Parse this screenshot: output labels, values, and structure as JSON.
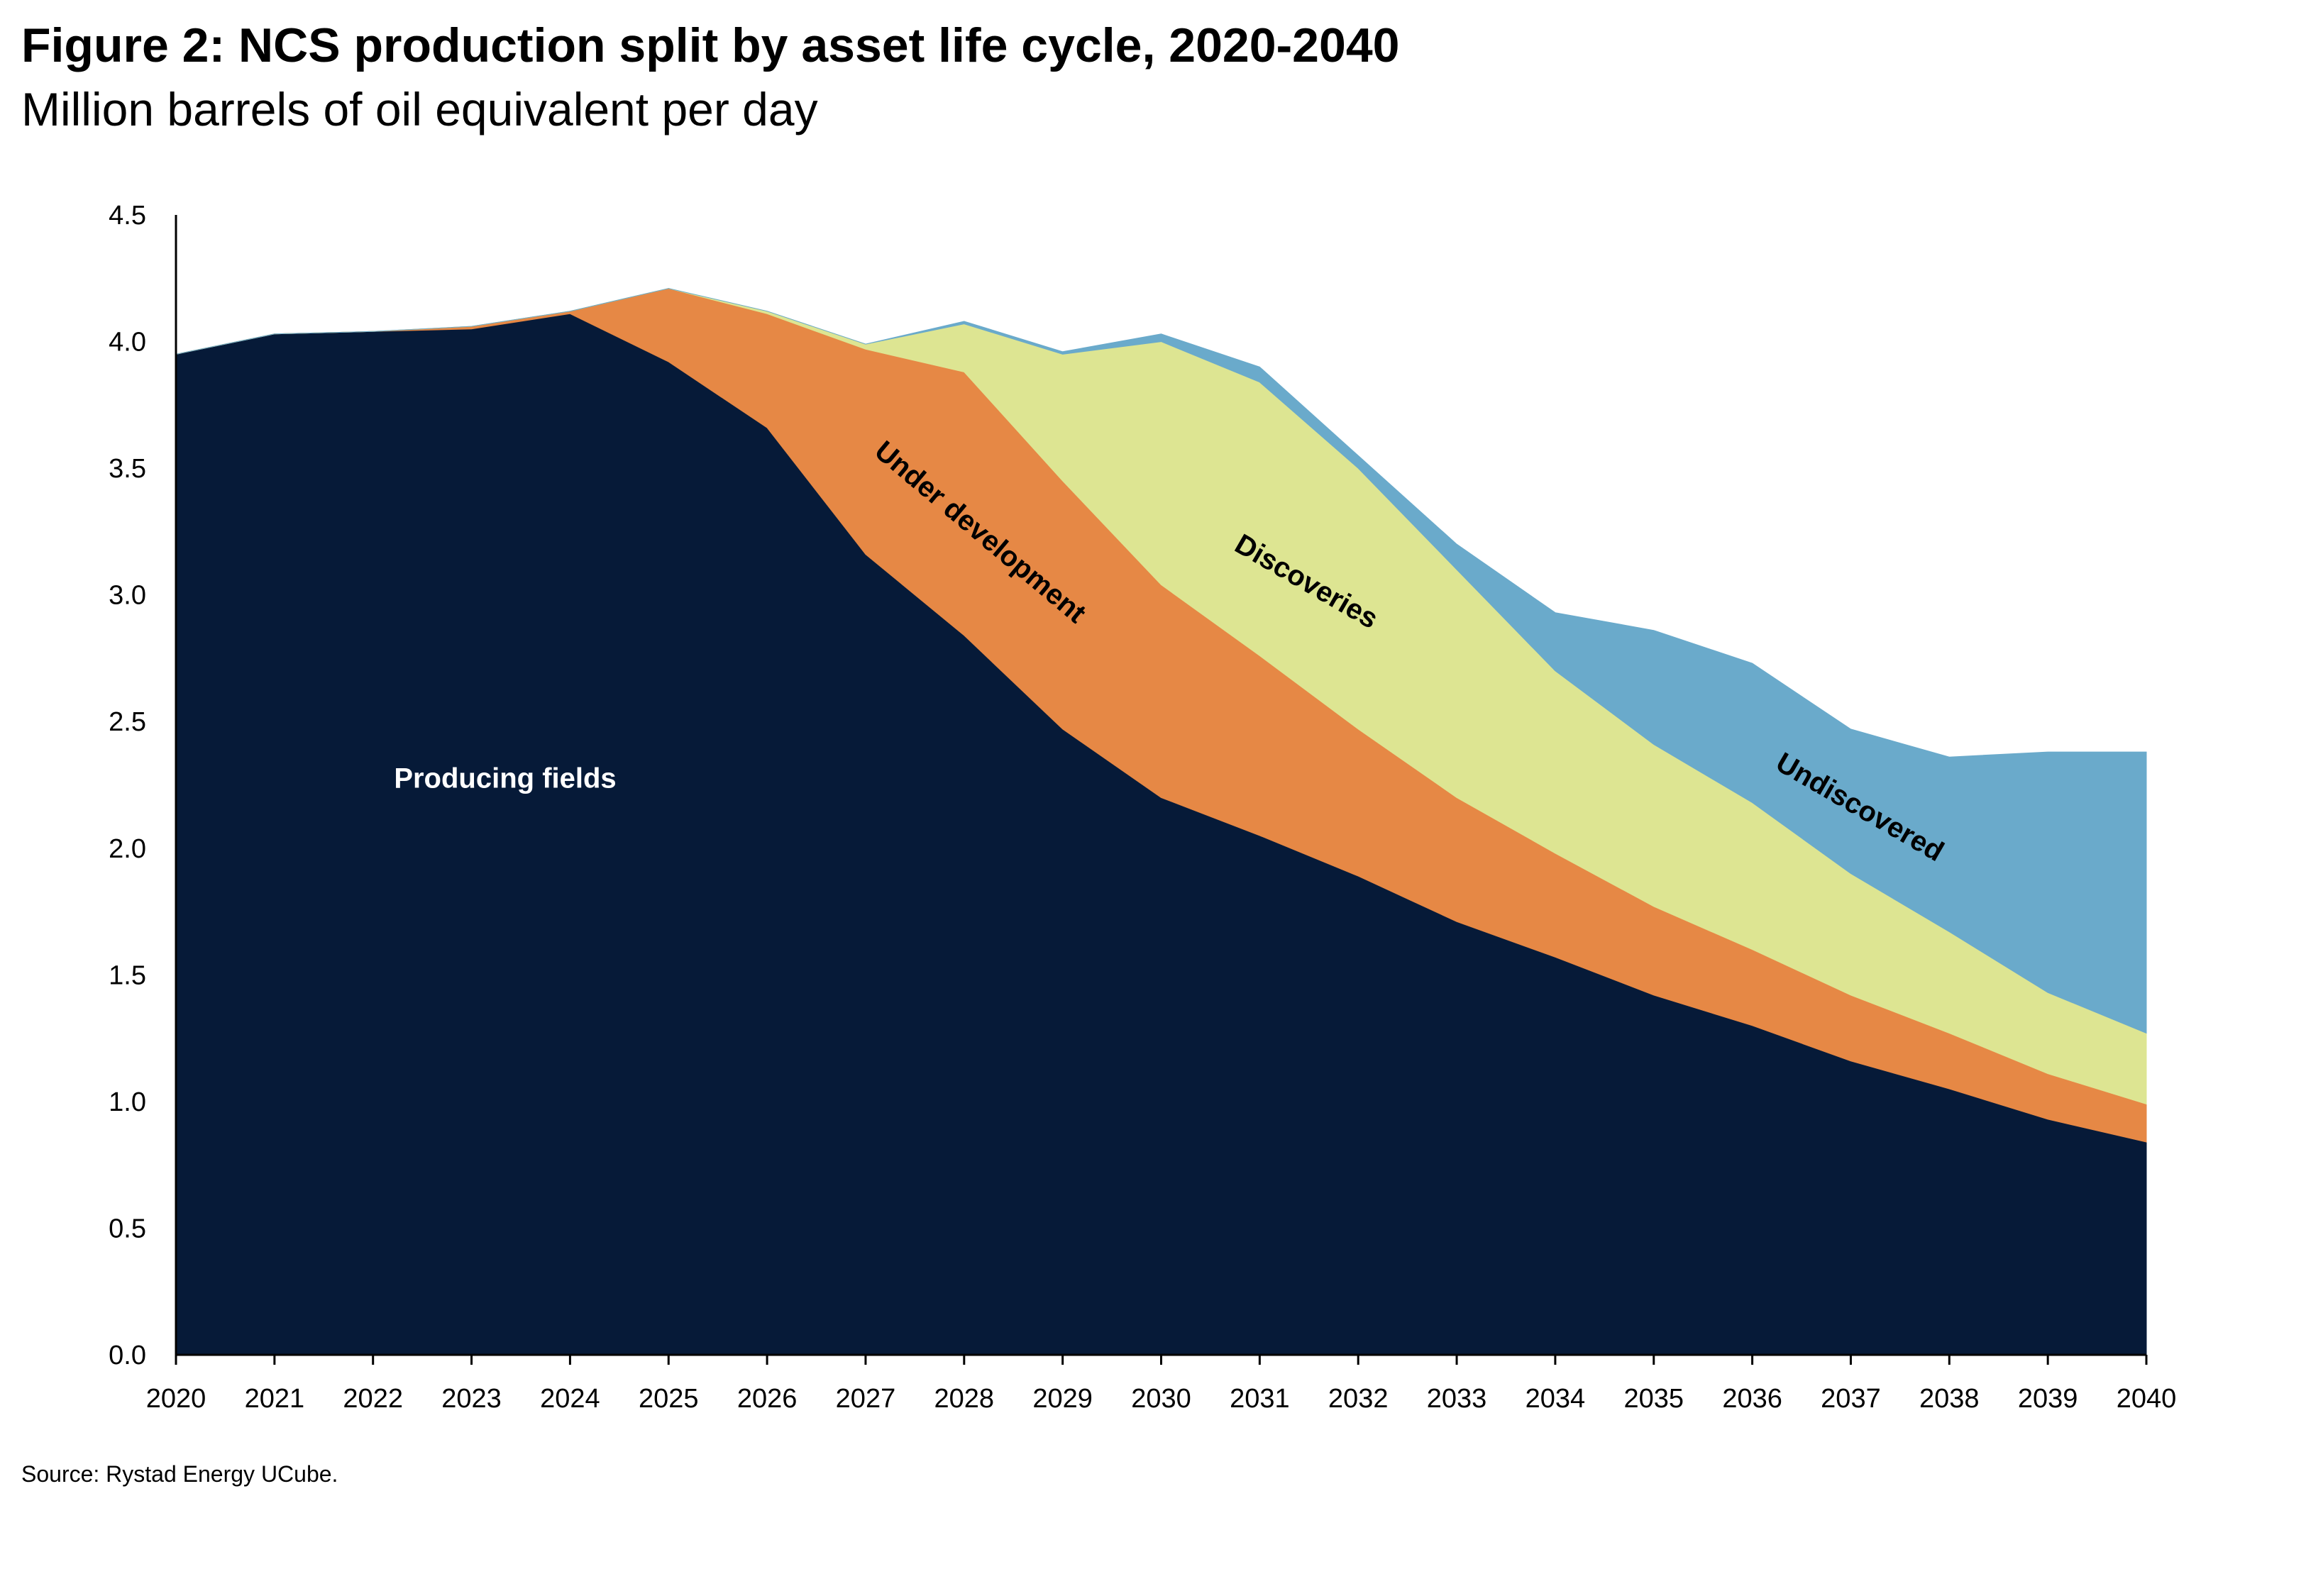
{
  "title": "Figure 2: NCS production split by asset life cycle, 2020-2040",
  "subtitle": "Million barrels of oil equivalent per day",
  "source": "Source: Rystad Energy UCube.",
  "chart_data": {
    "type": "area",
    "stacked": true,
    "title": "Figure 2: NCS production split by asset life cycle, 2020-2040",
    "subtitle": "Million barrels of oil equivalent per day",
    "xlabel": "",
    "ylabel": "",
    "categories": [
      "2020",
      "2021",
      "2022",
      "2023",
      "2024",
      "2025",
      "2026",
      "2027",
      "2028",
      "2029",
      "2030",
      "2031",
      "2032",
      "2033",
      "2034",
      "2035",
      "2036",
      "2037",
      "2038",
      "2039",
      "2040"
    ],
    "ylim": [
      0,
      4.5
    ],
    "yticks": [
      "0.0",
      "0.5",
      "1.0",
      "1.5",
      "2.0",
      "2.5",
      "3.0",
      "3.5",
      "4.0",
      "4.5"
    ],
    "grid": false,
    "legend": "none",
    "series": [
      {
        "name": "Producing fields",
        "color": "#061a38",
        "label_color": "#ffffff",
        "values": [
          3.95,
          4.03,
          4.04,
          4.05,
          4.11,
          3.92,
          3.66,
          3.16,
          2.84,
          2.47,
          2.2,
          2.05,
          1.89,
          1.71,
          1.57,
          1.42,
          1.3,
          1.16,
          1.05,
          0.93,
          0.84
        ]
      },
      {
        "name": "Under development",
        "color": "#e68845",
        "label_color": "#000000",
        "values": [
          0.0,
          0.0,
          0.0,
          0.01,
          0.01,
          0.29,
          0.45,
          0.81,
          1.04,
          0.98,
          0.84,
          0.71,
          0.58,
          0.49,
          0.41,
          0.35,
          0.3,
          0.26,
          0.22,
          0.18,
          0.15
        ]
      },
      {
        "name": "Discoveries",
        "color": "#dde592",
        "label_color": "#000000",
        "values": [
          0.0,
          0.0,
          0.0,
          0.0,
          0.0,
          0.0,
          0.01,
          0.02,
          0.19,
          0.5,
          0.96,
          1.08,
          1.03,
          0.9,
          0.72,
          0.64,
          0.58,
          0.48,
          0.4,
          0.32,
          0.28
        ]
      },
      {
        "name": "Undiscovered",
        "color": "#6aaacb",
        "label_color": "#000000",
        "values": [
          0.0,
          0.0,
          0.0,
          0.0,
          0.0,
          0.0,
          0.0,
          0.0,
          0.01,
          0.01,
          0.03,
          0.06,
          0.05,
          0.1,
          0.23,
          0.45,
          0.55,
          0.57,
          0.69,
          0.95,
          1.11
        ]
      }
    ]
  }
}
